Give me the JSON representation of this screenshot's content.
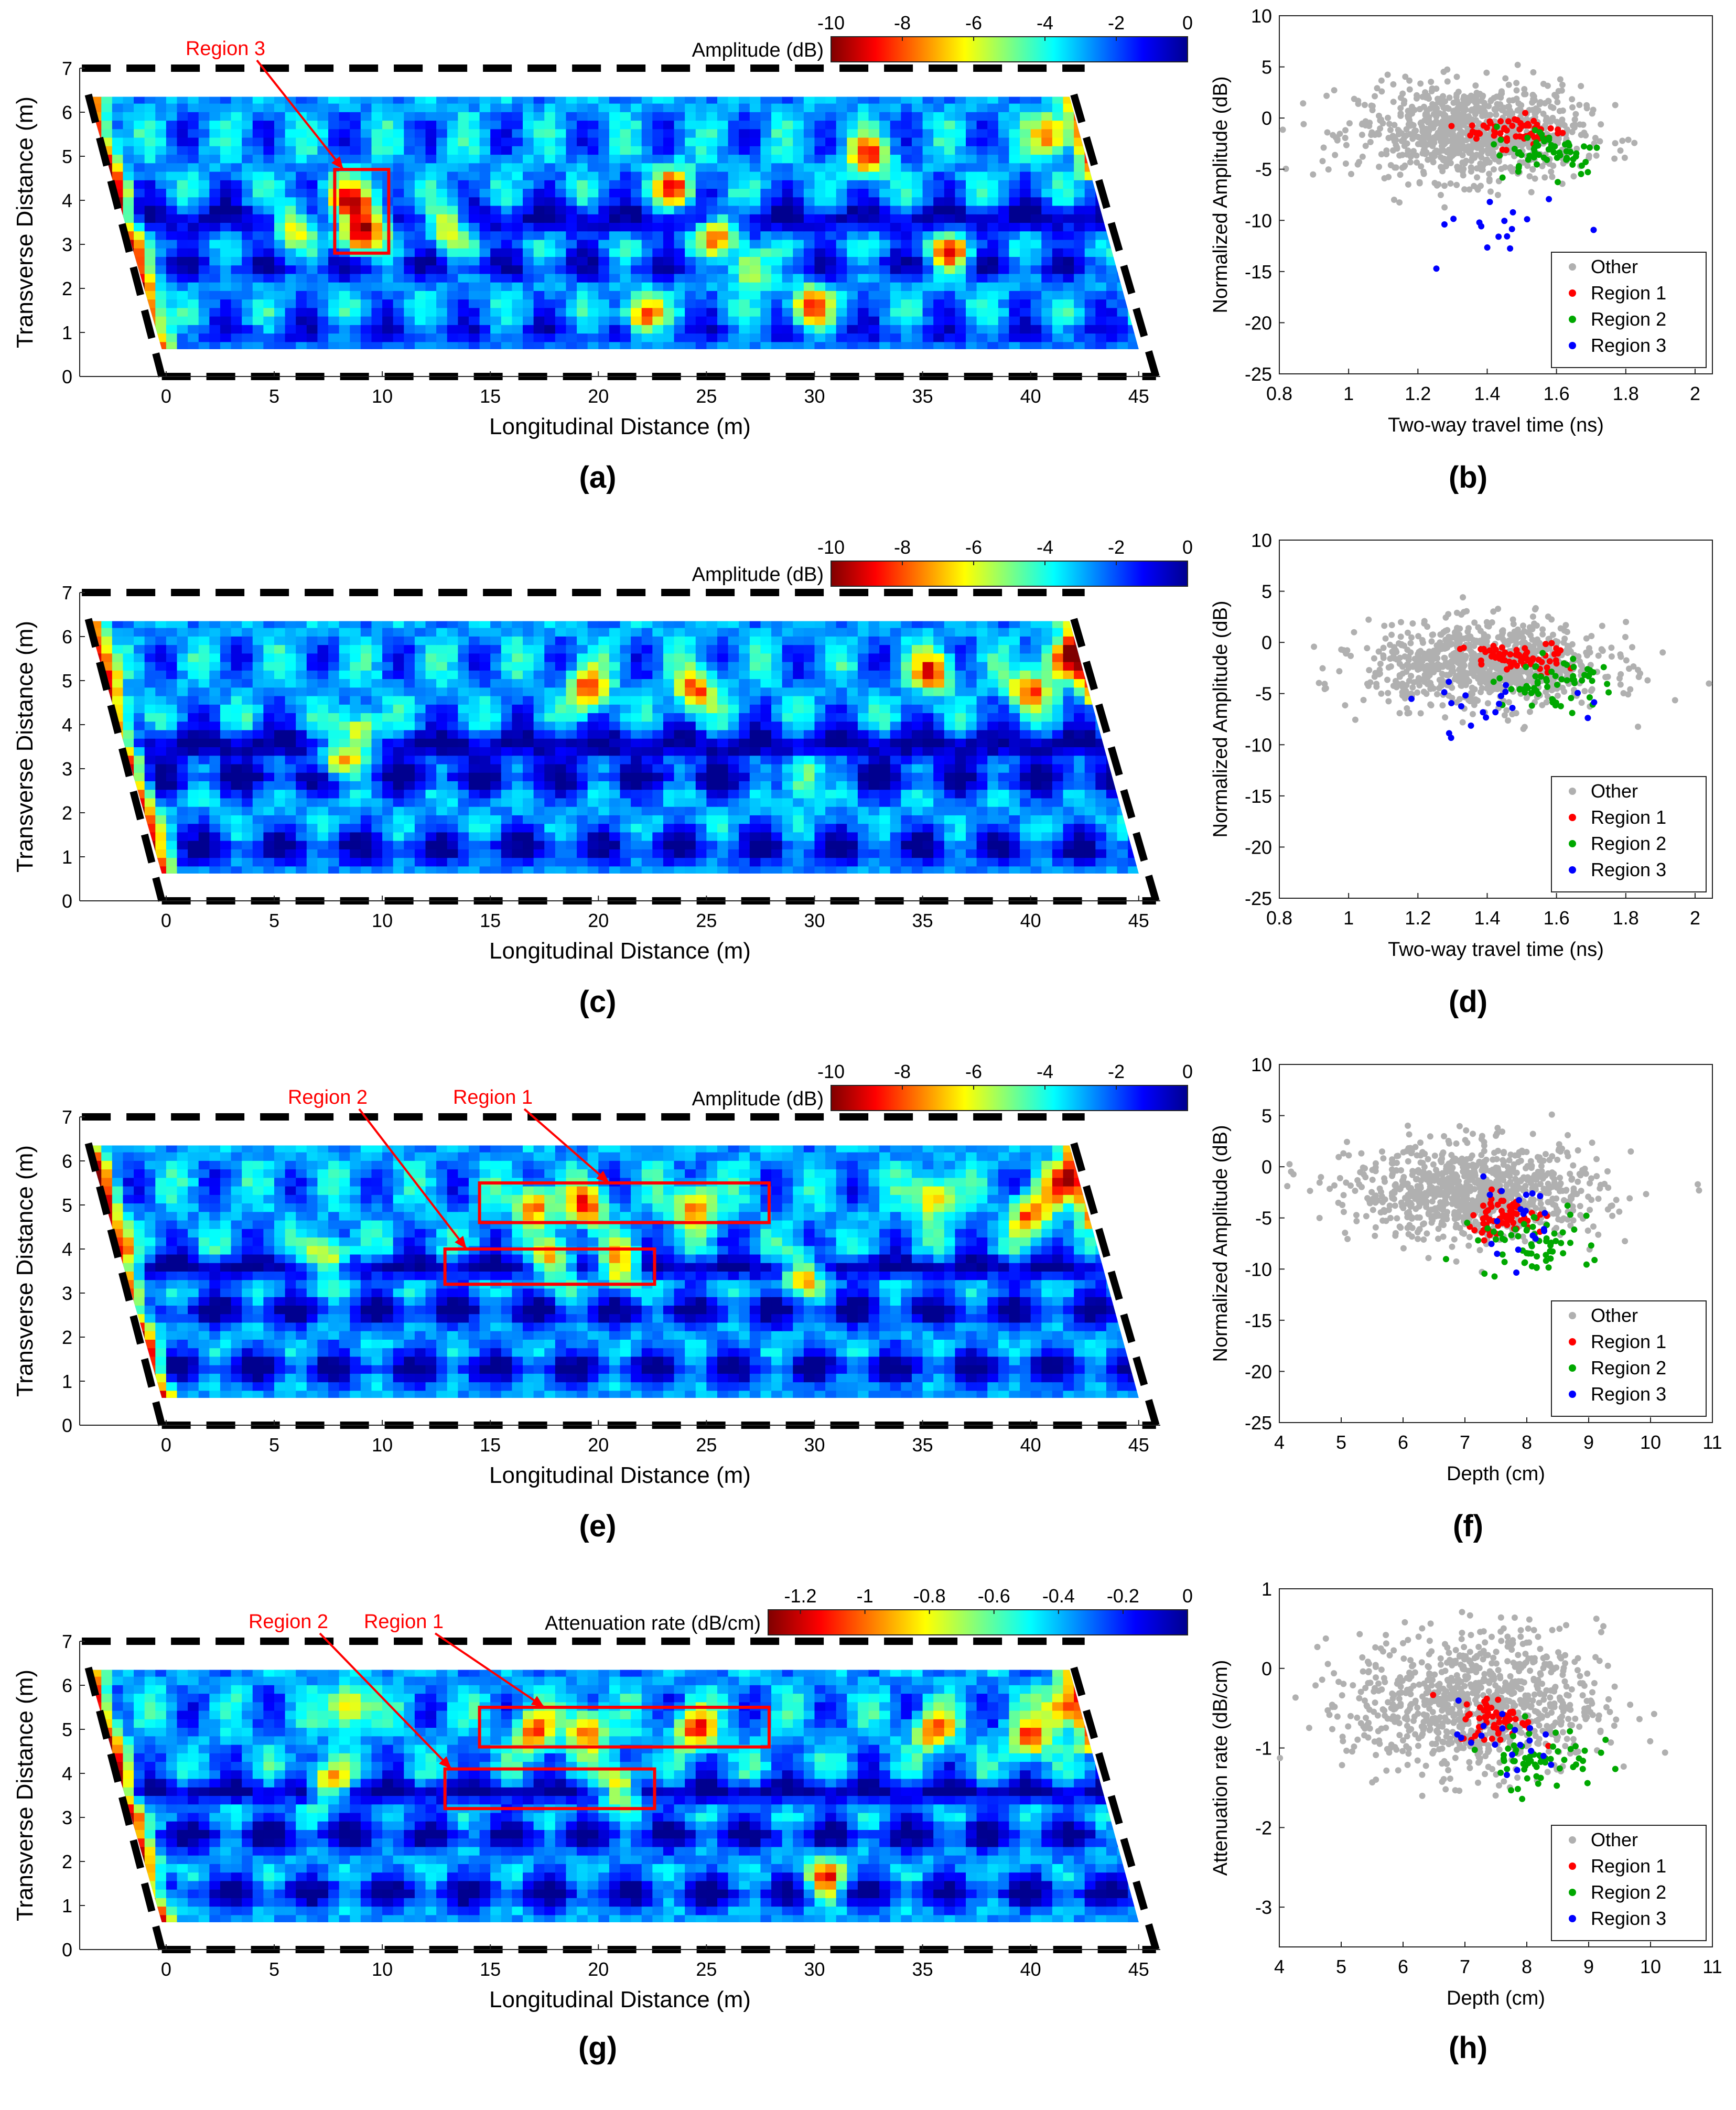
{
  "figure": {
    "caption_labels": [
      "(a)",
      "(b)",
      "(c)",
      "(d)",
      "(e)",
      "(f)",
      "(g)",
      "(h)"
    ]
  },
  "colors": {
    "colormap": [
      "#7f0000",
      "#ff0000",
      "#ff7f00",
      "#ffff00",
      "#7fff7f",
      "#00ffff",
      "#007fff",
      "#0000ff",
      "#00008f"
    ],
    "other": "#b0b0b0",
    "region1": "#ff0000",
    "region2": "#00a800",
    "region3": "#0000ff",
    "boundary": "#000000",
    "annotation": "#ff0000"
  },
  "chart_data": [
    {
      "id": "a",
      "type": "heatmap",
      "label": "(a)",
      "xlabel": "Longitudinal Distance (m)",
      "ylabel": "Transverse Distance (m)",
      "xlim": [
        -4,
        46
      ],
      "ylim": [
        0,
        7
      ],
      "xticks": [
        0,
        5,
        10,
        15,
        20,
        25,
        30,
        35,
        40,
        45
      ],
      "yticks": [
        0,
        1,
        2,
        3,
        4,
        5,
        6,
        7
      ],
      "colorbar": {
        "label": "Amplitude (dB)",
        "ticks": [
          -10,
          -8,
          -6,
          -4,
          -2,
          0
        ],
        "range": [
          -10,
          0
        ]
      },
      "annotations": [
        {
          "text": "Region 3",
          "box": {
            "x": [
              7.8,
              10.3
            ],
            "y": [
              2.8,
              4.7
            ]
          },
          "arrow_to": [
            8.2,
            4.7
          ]
        }
      ],
      "hotspots": [
        [
          8.5,
          4.0
        ],
        [
          9.5,
          3.6
        ],
        [
          8.8,
          3.2
        ],
        [
          32.5,
          5.0
        ],
        [
          29.8,
          1.6
        ],
        [
          36.3,
          2.8
        ],
        [
          23.5,
          4.3
        ],
        [
          22.0,
          1.4
        ],
        [
          27.0,
          2.5
        ],
        [
          41.0,
          5.5
        ],
        [
          6.0,
          3.5
        ],
        [
          25.5,
          3.3
        ],
        [
          13.0,
          3.5
        ]
      ],
      "bands": [
        [
          3.6,
          0.35,
          0.9
        ],
        [
          2.5,
          0.3,
          0.6
        ],
        [
          1.0,
          0.3,
          0.45
        ]
      ]
    },
    {
      "id": "b",
      "type": "scatter",
      "label": "(b)",
      "xlabel": "Two-way travel time (ns)",
      "ylabel": "Normalized Amplitude (dB)",
      "xlim": [
        0.8,
        2.05
      ],
      "ylim": [
        -25,
        10
      ],
      "xticks": [
        0.8,
        1,
        1.2,
        1.4,
        1.6,
        1.8,
        2
      ],
      "yticks": [
        -25,
        -20,
        -15,
        -10,
        -5,
        0,
        5,
        10
      ],
      "legend": [
        "Other",
        "Region 1",
        "Region 2",
        "Region 3"
      ],
      "legend_position": "bottom-right",
      "series": [
        {
          "name": "Other",
          "n": 900,
          "center": [
            1.35,
            -1.5
          ],
          "spread": [
            0.16,
            2.3
          ]
        },
        {
          "name": "Region 1",
          "n": 60,
          "center": [
            1.48,
            -1.2
          ],
          "spread": [
            0.07,
            0.8
          ]
        },
        {
          "name": "Region 2",
          "n": 60,
          "center": [
            1.58,
            -3.2
          ],
          "spread": [
            0.08,
            1.2
          ]
        },
        {
          "name": "Region 3",
          "n": 16,
          "center": [
            1.45,
            -10.5
          ],
          "spread": [
            0.12,
            2.0
          ]
        }
      ]
    },
    {
      "id": "c",
      "type": "heatmap",
      "label": "(c)",
      "xlabel": "Longitudinal Distance (m)",
      "ylabel": "Transverse Distance (m)",
      "xlim": [
        -4,
        46
      ],
      "ylim": [
        0,
        7
      ],
      "xticks": [
        0,
        5,
        10,
        15,
        20,
        25,
        30,
        35,
        40,
        45
      ],
      "yticks": [
        0,
        1,
        2,
        3,
        4,
        5,
        6,
        7
      ],
      "colorbar": {
        "label": "Amplitude (dB)",
        "ticks": [
          -10,
          -8,
          -6,
          -4,
          -2,
          0
        ],
        "range": [
          -10,
          0
        ]
      },
      "annotations": [],
      "hotspots": [
        [
          9.0,
          3.8
        ],
        [
          19.5,
          4.8
        ],
        [
          24.5,
          4.8
        ],
        [
          29.5,
          2.8
        ],
        [
          35.5,
          5.2
        ],
        [
          40.0,
          4.8
        ],
        [
          41.5,
          5.5
        ],
        [
          8.0,
          3.2
        ]
      ],
      "bands": [
        [
          3.55,
          0.35,
          1.0
        ],
        [
          2.8,
          0.3,
          0.8
        ],
        [
          1.2,
          0.35,
          0.7
        ]
      ]
    },
    {
      "id": "d",
      "type": "scatter",
      "label": "(d)",
      "xlabel": "Two-way travel time (ns)",
      "ylabel": "Normalized Amplitude (dB)",
      "xlim": [
        0.8,
        2.05
      ],
      "ylim": [
        -25,
        10
      ],
      "xticks": [
        0.8,
        1,
        1.2,
        1.4,
        1.6,
        1.8,
        2
      ],
      "yticks": [
        -25,
        -20,
        -15,
        -10,
        -5,
        0,
        5,
        10
      ],
      "legend": [
        "Other",
        "Region 1",
        "Region 2",
        "Region 3"
      ],
      "legend_position": "bottom-right",
      "series": [
        {
          "name": "Other",
          "n": 900,
          "center": [
            1.4,
            -2.2
          ],
          "spread": [
            0.17,
            2.0
          ]
        },
        {
          "name": "Region 1",
          "n": 60,
          "center": [
            1.48,
            -1.6
          ],
          "spread": [
            0.07,
            0.8
          ]
        },
        {
          "name": "Region 2",
          "n": 60,
          "center": [
            1.6,
            -4.0
          ],
          "spread": [
            0.08,
            1.2
          ]
        },
        {
          "name": "Region 3",
          "n": 20,
          "center": [
            1.4,
            -6.5
          ],
          "spread": [
            0.12,
            1.3
          ]
        }
      ]
    },
    {
      "id": "e",
      "type": "heatmap",
      "label": "(e)",
      "xlabel": "Longitudinal Distance (m)",
      "ylabel": "Transverse Distance (m)",
      "xlim": [
        -4,
        46
      ],
      "ylim": [
        0,
        7
      ],
      "xticks": [
        0,
        5,
        10,
        15,
        20,
        25,
        30,
        35,
        40,
        45
      ],
      "yticks": [
        0,
        1,
        2,
        3,
        4,
        5,
        6,
        7
      ],
      "colorbar": {
        "label": "Amplitude (dB)",
        "ticks": [
          -10,
          -8,
          -6,
          -4,
          -2,
          0
        ],
        "range": [
          -10,
          0
        ]
      },
      "annotations": [
        {
          "text": "Region 1",
          "box": {
            "x": [
              14.5,
              27.9
            ],
            "y": [
              4.6,
              5.5
            ]
          },
          "arrow_to": [
            20.5,
            5.5
          ]
        },
        {
          "text": "Region 2",
          "box": {
            "x": [
              12.9,
              22.6
            ],
            "y": [
              3.2,
              4.0
            ]
          },
          "arrow_to": [
            13.9,
            4.0
          ]
        }
      ],
      "hotspots": [
        [
          19.5,
          5.0
        ],
        [
          24.5,
          5.0
        ],
        [
          17.0,
          5.0
        ],
        [
          21.0,
          3.6
        ],
        [
          18.0,
          3.7
        ],
        [
          7.5,
          3.8
        ],
        [
          35.5,
          5.2
        ],
        [
          40.0,
          4.8
        ],
        [
          41.5,
          5.5
        ],
        [
          29.5,
          3.5
        ]
      ],
      "bands": [
        [
          3.6,
          0.25,
          1.0
        ],
        [
          2.6,
          0.3,
          0.8
        ],
        [
          1.3,
          0.3,
          0.8
        ]
      ]
    },
    {
      "id": "f",
      "type": "scatter",
      "label": "(f)",
      "xlabel": "Depth (cm)",
      "ylabel": "Normalized Amplitude (dB)",
      "xlim": [
        4,
        11
      ],
      "ylim": [
        -25,
        10
      ],
      "xticks": [
        4,
        5,
        6,
        7,
        8,
        9,
        10,
        11
      ],
      "yticks": [
        -25,
        -20,
        -15,
        -10,
        -5,
        0,
        5,
        10
      ],
      "legend": [
        "Other",
        "Region 1",
        "Region 2",
        "Region 3"
      ],
      "legend_position": "bottom-right",
      "series": [
        {
          "name": "Other",
          "n": 900,
          "center": [
            7.2,
            -2.5
          ],
          "spread": [
            1.0,
            2.3
          ]
        },
        {
          "name": "Region 1",
          "n": 60,
          "center": [
            7.6,
            -4.8
          ],
          "spread": [
            0.35,
            1.0
          ]
        },
        {
          "name": "Region 2",
          "n": 60,
          "center": [
            8.1,
            -7.5
          ],
          "spread": [
            0.45,
            1.6
          ]
        },
        {
          "name": "Region 3",
          "n": 20,
          "center": [
            7.8,
            -5.2
          ],
          "spread": [
            0.45,
            1.8
          ]
        }
      ]
    },
    {
      "id": "g",
      "type": "heatmap",
      "label": "(g)",
      "xlabel": "Longitudinal Distance (m)",
      "ylabel": "Transverse Distance (m)",
      "xlim": [
        -4,
        46
      ],
      "ylim": [
        0,
        7
      ],
      "xticks": [
        0,
        5,
        10,
        15,
        20,
        25,
        30,
        35,
        40,
        45
      ],
      "yticks": [
        0,
        1,
        2,
        3,
        4,
        5,
        6,
        7
      ],
      "colorbar": {
        "label": "Attenuation rate (dB/cm)",
        "ticks": [
          -1.2,
          -1,
          -0.8,
          -0.6,
          -0.4,
          -0.2,
          0
        ],
        "range": [
          -1.3,
          0
        ]
      },
      "annotations": [
        {
          "text": "Region 1",
          "box": {
            "x": [
              14.5,
              27.9
            ],
            "y": [
              4.6,
              5.5
            ]
          },
          "arrow_to": [
            17.5,
            5.5
          ]
        },
        {
          "text": "Region 2",
          "box": {
            "x": [
              12.9,
              22.6
            ],
            "y": [
              3.2,
              4.1
            ]
          },
          "arrow_to": [
            13.2,
            4.1
          ]
        }
      ],
      "hotspots": [
        [
          19.5,
          5.0
        ],
        [
          24.5,
          5.0
        ],
        [
          17.0,
          5.0
        ],
        [
          21.0,
          3.7
        ],
        [
          7.5,
          3.8
        ],
        [
          30.5,
          1.6
        ],
        [
          35.5,
          5.0
        ],
        [
          40.0,
          4.8
        ],
        [
          41.5,
          5.5
        ],
        [
          8.5,
          5.5
        ]
      ],
      "bands": [
        [
          3.6,
          0.25,
          1.0
        ],
        [
          2.6,
          0.3,
          0.8
        ],
        [
          1.3,
          0.3,
          0.8
        ]
      ]
    },
    {
      "id": "h",
      "type": "scatter",
      "label": "(h)",
      "xlabel": "Depth (cm)",
      "ylabel": "Attenuation rate (dB/cm)",
      "xlim": [
        4,
        11
      ],
      "ylim": [
        -3.5,
        1
      ],
      "xticks": [
        4,
        5,
        6,
        7,
        8,
        9,
        10,
        11
      ],
      "yticks": [
        -3,
        -2,
        -1,
        0,
        1
      ],
      "legend": [
        "Other",
        "Region 1",
        "Region 2",
        "Region 3"
      ],
      "legend_position": "bottom-right",
      "series": [
        {
          "name": "Other",
          "n": 900,
          "center": [
            7.2,
            -0.45
          ],
          "spread": [
            1.0,
            0.45
          ]
        },
        {
          "name": "Region 1",
          "n": 60,
          "center": [
            7.5,
            -0.65
          ],
          "spread": [
            0.3,
            0.15
          ]
        },
        {
          "name": "Region 2",
          "n": 60,
          "center": [
            8.2,
            -1.1
          ],
          "spread": [
            0.45,
            0.2
          ]
        },
        {
          "name": "Region 3",
          "n": 20,
          "center": [
            7.6,
            -0.95
          ],
          "spread": [
            0.5,
            0.25
          ]
        }
      ]
    }
  ]
}
